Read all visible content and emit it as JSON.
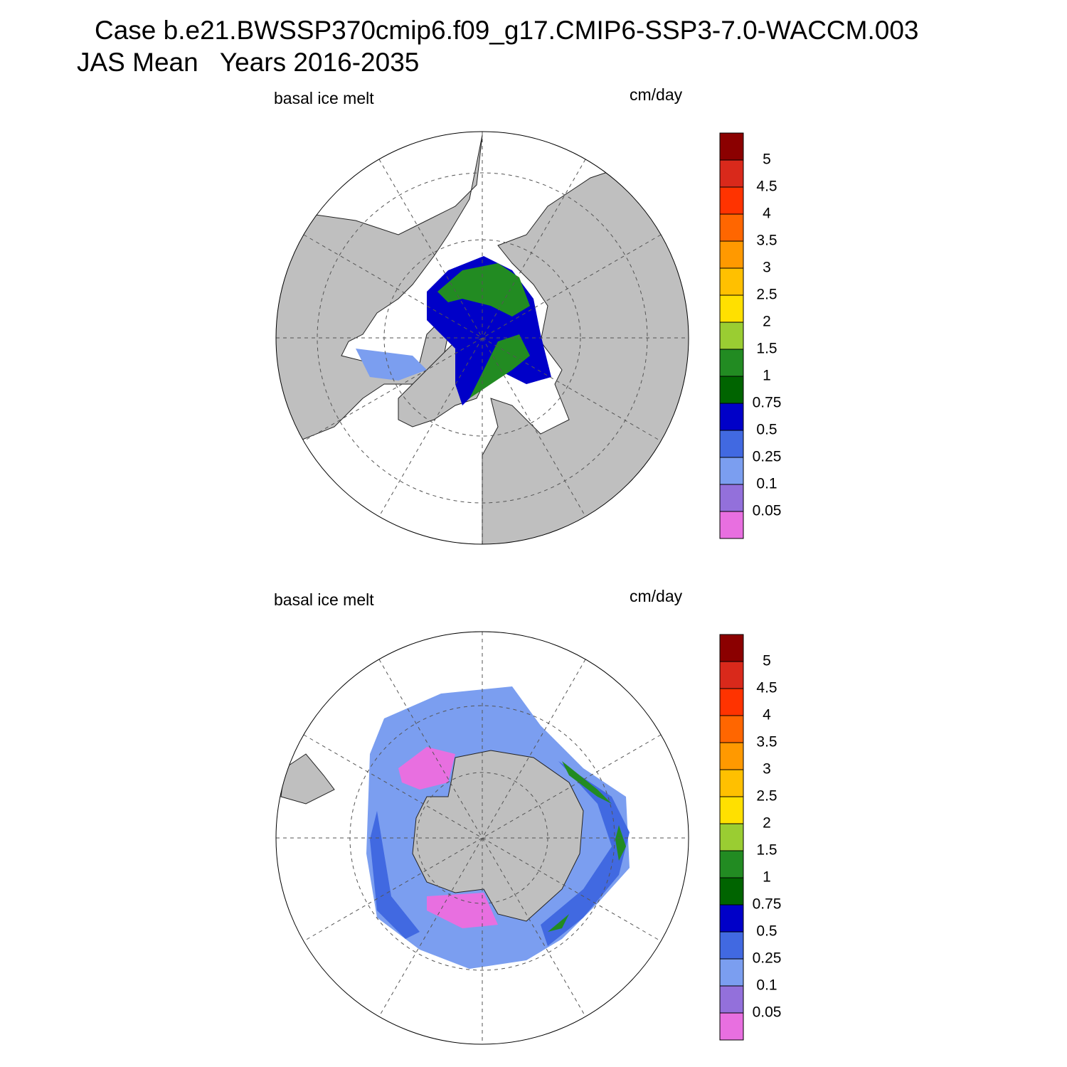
{
  "title": {
    "line1": "Case b.e21.BWSSP370cmip6.f09_g17.CMIP6-SSP3-7.0-WACCM.003",
    "line2": "JAS Mean   Years 2016-2035"
  },
  "panels": [
    {
      "label": "basal ice melt",
      "units": "cm/day",
      "colorbar": {
        "levels": [
          0.05,
          0.1,
          0.25,
          0.5,
          0.75,
          1,
          1.5,
          2,
          2.5,
          3,
          3.5,
          4,
          4.5,
          5
        ],
        "colors": [
          "#e86fe0",
          "#9370db",
          "#7b9ef0",
          "#4169e1",
          "#0000c8",
          "#006400",
          "#228b22",
          "#9acd32",
          "#ffe000",
          "#ffc000",
          "#ff9900",
          "#ff6600",
          "#ff3300",
          "#d9291b",
          "#8b0000"
        ]
      }
    },
    {
      "label": "basal ice melt",
      "units": "cm/day",
      "colorbar": {
        "levels": [
          0.05,
          0.1,
          0.25,
          0.5,
          0.75,
          1,
          1.5,
          2,
          2.5,
          3,
          3.5,
          4,
          4.5,
          5
        ],
        "colors": [
          "#e86fe0",
          "#9370db",
          "#7b9ef0",
          "#4169e1",
          "#0000c8",
          "#006400",
          "#228b22",
          "#9acd32",
          "#ffe000",
          "#ffc000",
          "#ff9900",
          "#ff6600",
          "#ff3300",
          "#d9291b",
          "#8b0000"
        ]
      }
    }
  ]
}
